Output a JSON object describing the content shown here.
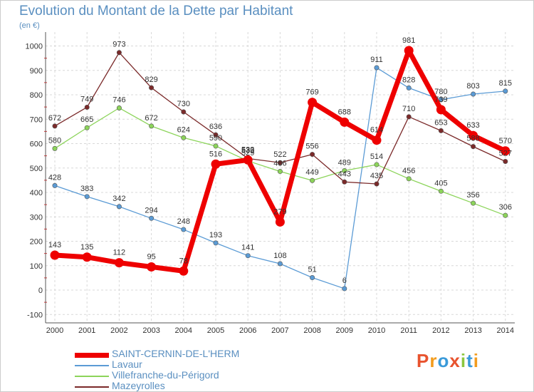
{
  "title": "Evolution du Montant de la Dette par Habitant",
  "unit_label": "(en €)",
  "logo": {
    "letters": [
      "P",
      "r",
      "o",
      "x",
      "i",
      "t",
      "i"
    ],
    "colors": [
      "#e8532e",
      "#f39c1e",
      "#3a9ad9",
      "#e8532e",
      "#8cc63f",
      "#3a9ad9",
      "#f39c1e"
    ]
  },
  "chart_data": {
    "type": "line",
    "x": [
      "2000",
      "2001",
      "2002",
      "2003",
      "2004",
      "2005",
      "2006",
      "2007",
      "2008",
      "2009",
      "2010",
      "2011",
      "2012",
      "2013",
      "2014"
    ],
    "ylim": [
      -100,
      1000
    ],
    "yticks": [
      "-100",
      "0",
      "100",
      "200",
      "300",
      "400",
      "500",
      "600",
      "700",
      "800",
      "900",
      "1000"
    ],
    "grid": true,
    "legend_position": "bottom-left",
    "series": [
      {
        "name": "SAINT-CERNIN-DE-L'HERM",
        "color": "#ee0000",
        "values": [
          143,
          135,
          112,
          95,
          78,
          516,
          533,
          279,
          769,
          688,
          614,
          981,
          739,
          633,
          570
        ]
      },
      {
        "name": "Lavaur",
        "color": "#5b9bd5",
        "values": [
          428,
          383,
          342,
          294,
          248,
          193,
          141,
          108,
          51,
          6,
          911,
          828,
          780,
          803,
          815
        ]
      },
      {
        "name": "Villefranche-du-Périgord",
        "color": "#8cd45a",
        "values": [
          580,
          665,
          746,
          672,
          624,
          590,
          529,
          486,
          449,
          489,
          514,
          456,
          405,
          356,
          306
        ]
      },
      {
        "name": "Mazeyrolles",
        "color": "#7b2a2a",
        "values": [
          672,
          749,
          973,
          829,
          730,
          636,
          539,
          522,
          556,
          443,
          435,
          710,
          653,
          588,
          527
        ]
      }
    ]
  }
}
